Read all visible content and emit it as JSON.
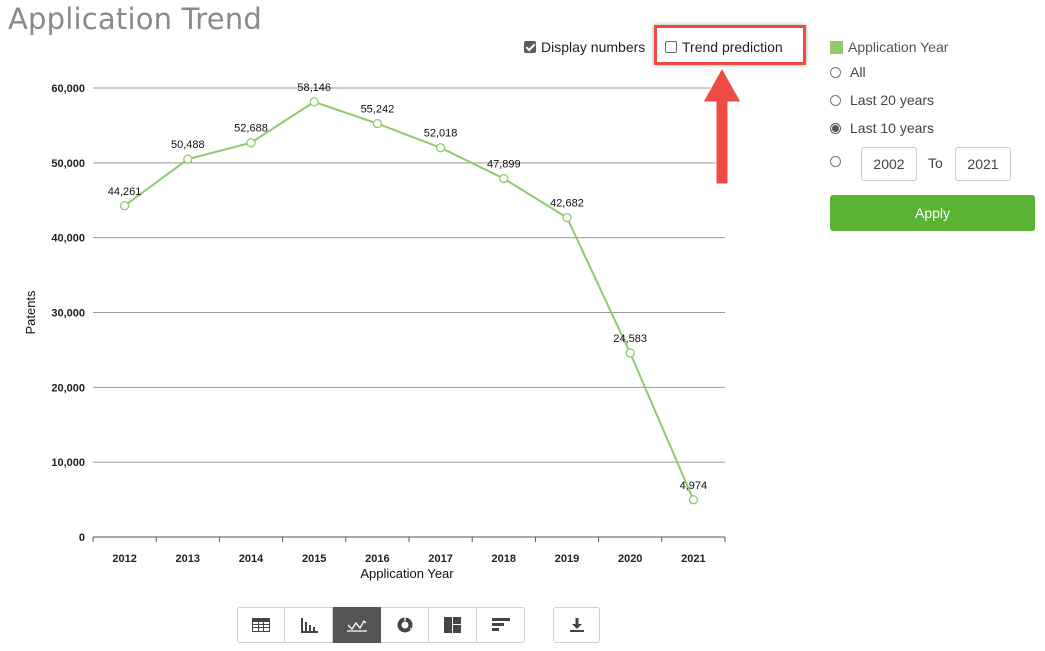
{
  "page": {
    "title": "Application Trend"
  },
  "options": {
    "display_numbers": {
      "label": "Display numbers",
      "checked": true
    },
    "trend_prediction": {
      "label": "Trend prediction",
      "checked": false
    }
  },
  "filter": {
    "legend_label": "Application Year",
    "legend_color": "#8fcb6e",
    "radios": [
      {
        "label": "All",
        "checked": false
      },
      {
        "label": "Last 20 years",
        "checked": false
      },
      {
        "label": "Last 10 years",
        "checked": true
      }
    ],
    "range": {
      "checked": false,
      "from": "2002",
      "to_label": "To",
      "to": "2021"
    },
    "apply_label": "Apply",
    "apply_color": "#5ab332"
  },
  "toolbar": {
    "views": [
      {
        "icon": "table-icon",
        "active": false
      },
      {
        "icon": "bar-chart-icon",
        "active": false
      },
      {
        "icon": "line-chart-icon",
        "active": true
      },
      {
        "icon": "donut-chart-icon",
        "active": false
      },
      {
        "icon": "treemap-icon",
        "active": false
      },
      {
        "icon": "horizontal-bar-icon",
        "active": false
      }
    ],
    "download_icon": "download-icon"
  },
  "annotation": {
    "color": "#ee4b44"
  },
  "chart_data": {
    "type": "line",
    "title": "",
    "xlabel": "Application Year",
    "ylabel": "Patents",
    "categories": [
      "2012",
      "2013",
      "2014",
      "2015",
      "2016",
      "2017",
      "2018",
      "2019",
      "2020",
      "2021"
    ],
    "series": [
      {
        "values": [
          44261,
          50488,
          52688,
          58146,
          55242,
          52018,
          47899,
          42682,
          24583,
          4974
        ],
        "color": "#8fcb6e"
      }
    ],
    "value_labels": [
      "44,261",
      "50,488",
      "52,688",
      "58,146",
      "55,242",
      "52,018",
      "47,899",
      "42,682",
      "24,583",
      "4,974"
    ],
    "ylim": [
      0,
      60000
    ],
    "yticks": [
      0,
      10000,
      20000,
      30000,
      40000,
      50000,
      60000
    ],
    "ytick_labels": [
      "0",
      "10,000",
      "20,000",
      "30,000",
      "40,000",
      "50,000",
      "60,000"
    ],
    "grid": true
  }
}
